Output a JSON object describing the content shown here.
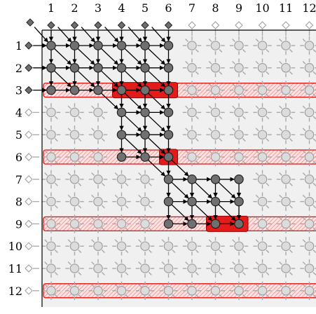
{
  "columns": [
    "1",
    "2",
    "3",
    "4",
    "5",
    "6",
    "7",
    "8",
    "9",
    "10",
    "11",
    "12"
  ],
  "rows": [
    "1",
    "2",
    "3",
    "4",
    "5",
    "6",
    "7",
    "8",
    "9",
    "10",
    "11",
    "12"
  ],
  "active_region": [
    [
      1,
      6
    ],
    [
      1,
      6
    ],
    [
      1,
      6
    ],
    [
      4,
      6
    ],
    [
      4,
      6
    ],
    [
      4,
      6
    ],
    [
      6,
      9
    ],
    [
      6,
      9
    ],
    [
      6,
      9
    ],
    [],
    [],
    []
  ],
  "highlighted_rows": [
    3,
    6,
    9,
    12
  ],
  "red_cells": [
    [
      3,
      4
    ],
    [
      3,
      5
    ],
    [
      3,
      6
    ],
    [
      6,
      6
    ],
    [
      9,
      8
    ],
    [
      9,
      9
    ]
  ],
  "active_source_rows": [
    1,
    2,
    3
  ],
  "active_source_cols": [
    1,
    2,
    3,
    4,
    5,
    6
  ],
  "colors": {
    "active_node": "#707070",
    "inactive_node": "#dcdcdc",
    "highlight_band": "#e01010",
    "red_fill": "#e41b1b",
    "grid_background": "#f0f0f0"
  }
}
